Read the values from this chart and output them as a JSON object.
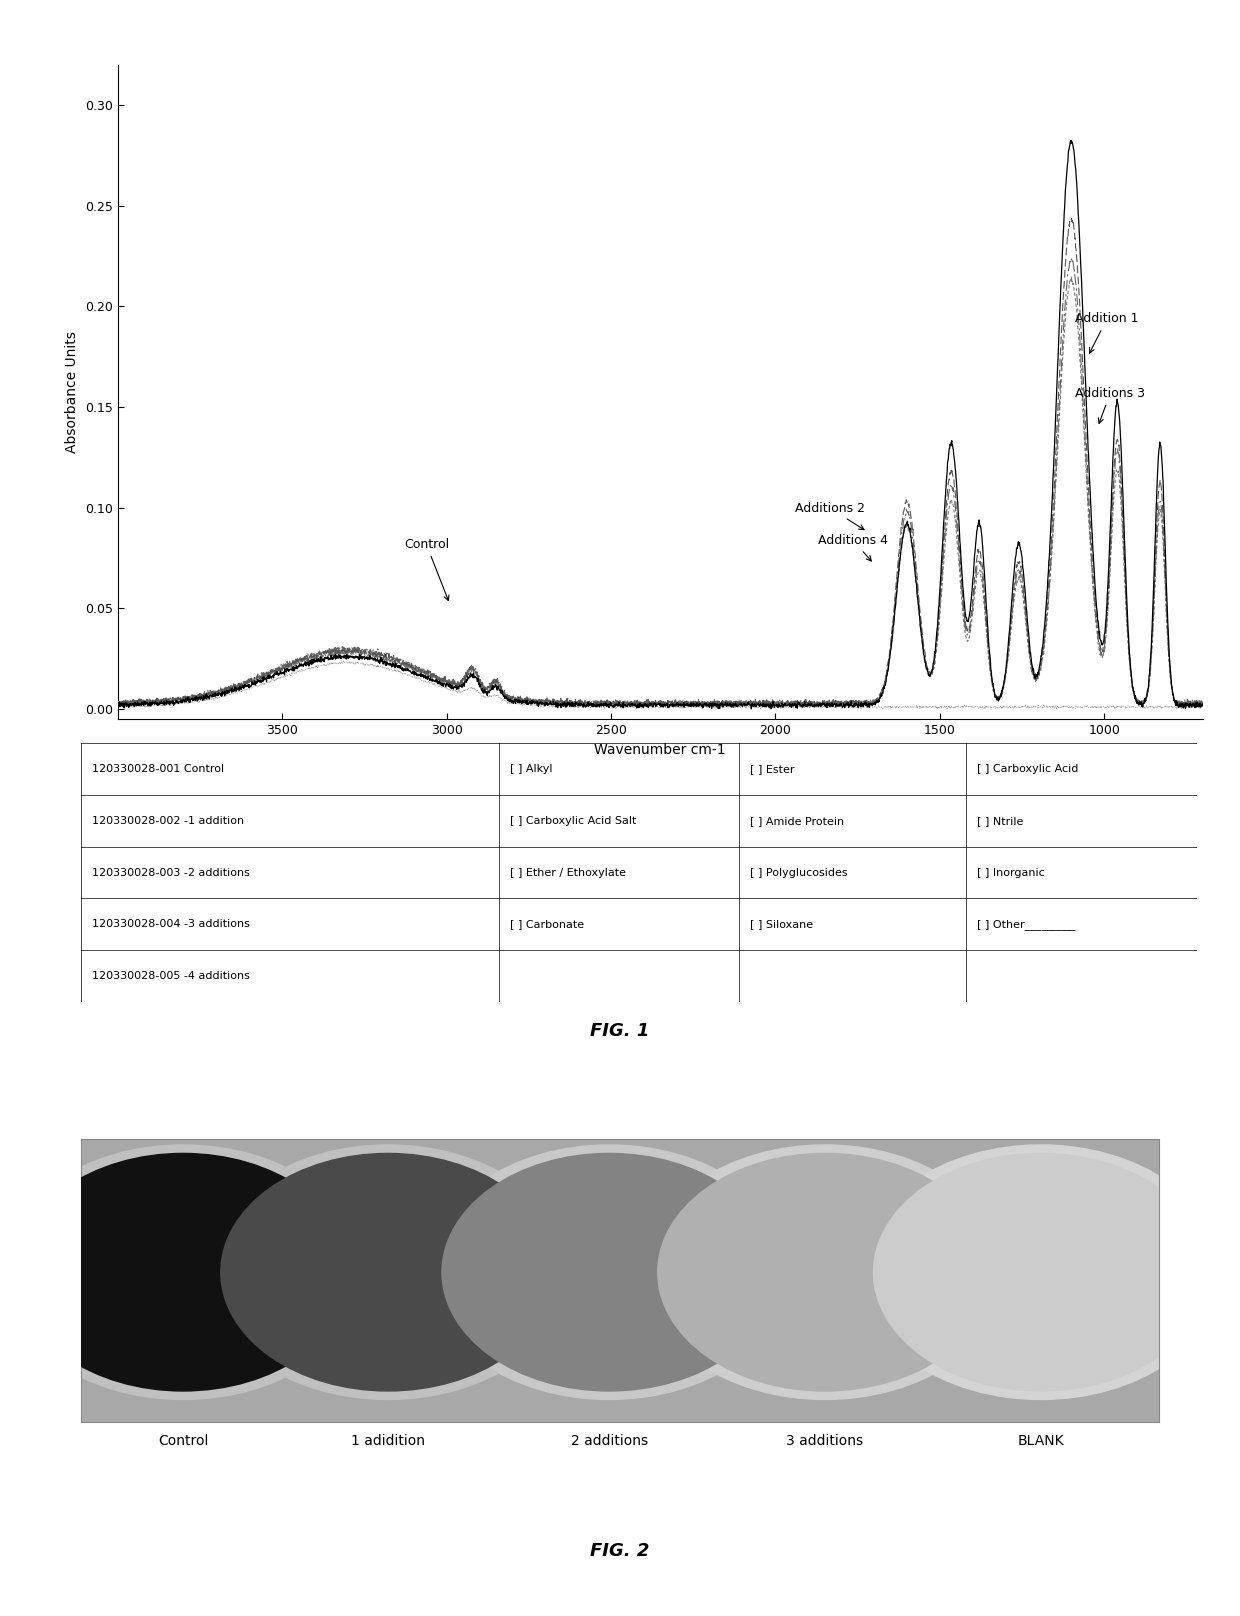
{
  "title": "",
  "xlabel": "Wavenumber cm-1",
  "ylabel": "Absorbance Units",
  "xlim": [
    4000,
    700
  ],
  "ylim": [
    -0.005,
    0.32
  ],
  "yticks": [
    0.0,
    0.05,
    0.1,
    0.15,
    0.2,
    0.25,
    0.3
  ],
  "xticks": [
    3500,
    3000,
    2500,
    2000,
    1500,
    1000
  ],
  "fig1_label": "FIG. 1",
  "fig2_label": "FIG. 2",
  "circle_labels": [
    "Control",
    "1 adidition",
    "2 additions",
    "3 additions",
    "BLANK"
  ],
  "circle_fill_colors": [
    "#111111",
    "#4a4a4a",
    "#838383",
    "#b0b0b0",
    "#cccccc"
  ],
  "circle_rim_colors": [
    "#c0c0c0",
    "#c0c0c0",
    "#c8c8c8",
    "#cecece",
    "#d4d4d4"
  ],
  "panel_bg": "#a8a8a8",
  "table_left_col": [
    "120330028-001 Control",
    "120330028-002 -1 addition",
    "120330028-003 -2 additions",
    "120330028-004 -3 additions",
    "120330028-005 -4 additions"
  ],
  "table_col1": [
    "[ ] Alkyl",
    "[ ] Carboxylic Acid Salt",
    "[ ] Ether / Ethoxylate",
    "[ ] Carbonate",
    ""
  ],
  "table_col2": [
    "[ ] Ester",
    "[ ] Amide Protein",
    "[ ] Polyglucosides",
    "[ ] Siloxane",
    ""
  ],
  "table_col3": [
    "[ ] Carboxylic Acid",
    "[ ] Ntrile",
    "[ ] Inorganic",
    "[ ] Other_________",
    ""
  ]
}
